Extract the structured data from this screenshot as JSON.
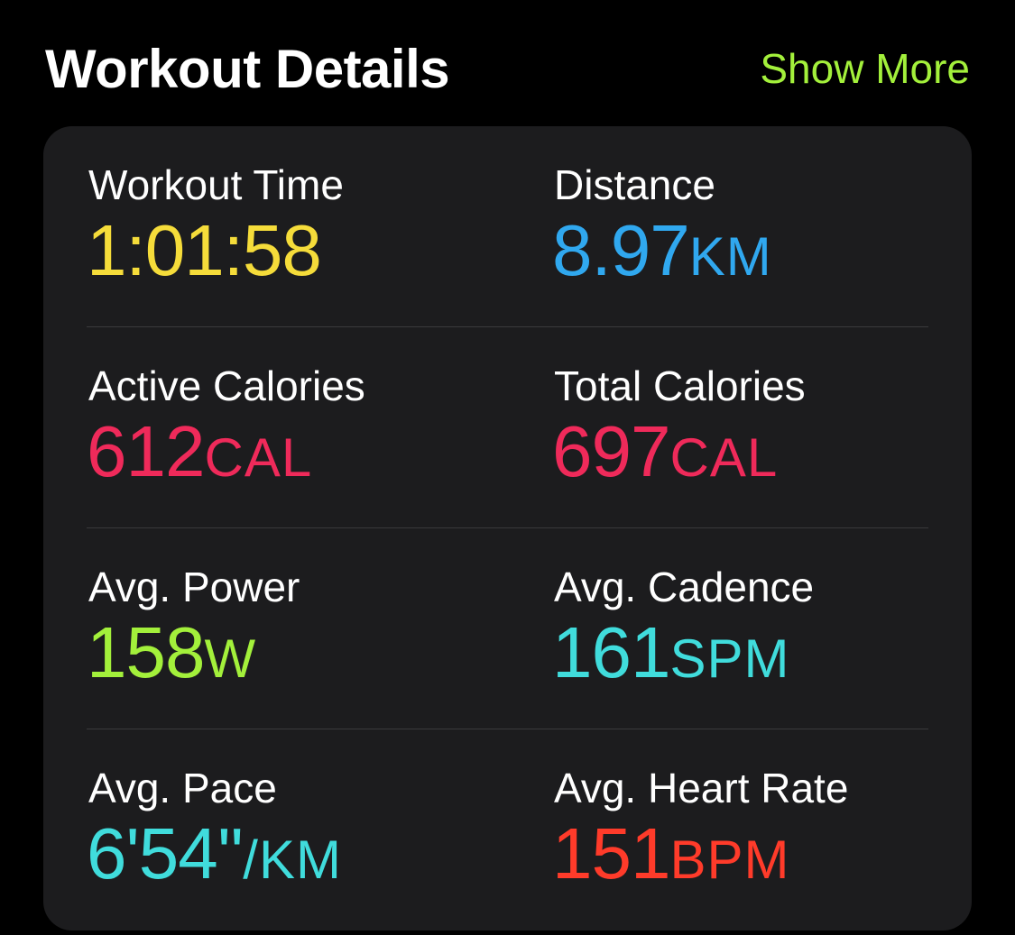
{
  "header": {
    "title": "Workout Details",
    "show_more_label": "Show More"
  },
  "colors": {
    "background": "#000000",
    "card": "#1c1c1e",
    "divider": "#3a3a3c",
    "accent_green": "#a3f03b",
    "time_yellow": "#f5dc3a",
    "distance_blue": "#30a8ef",
    "calories_red": "#ef2a5a",
    "power_green": "#a3f03b",
    "cyan": "#40dcdc",
    "heart_red": "#ff3b2a"
  },
  "metrics": [
    {
      "label": "Workout Time",
      "value": "1:01:58",
      "unit": "",
      "color": "#f5dc3a"
    },
    {
      "label": "Distance",
      "value": "8.97",
      "unit": "KM",
      "color": "#30a8ef"
    },
    {
      "label": "Active Calories",
      "value": "612",
      "unit": "CAL",
      "color": "#ef2a5a"
    },
    {
      "label": "Total Calories",
      "value": "697",
      "unit": "CAL",
      "color": "#ef2a5a"
    },
    {
      "label": "Avg. Power",
      "value": "158",
      "unit": "W",
      "color": "#a3f03b"
    },
    {
      "label": "Avg. Cadence",
      "value": "161",
      "unit": "SPM",
      "color": "#40dcdc"
    },
    {
      "label": "Avg. Pace",
      "value": "6'54''",
      "unit": "/KM",
      "color": "#40dcdc"
    },
    {
      "label": "Avg. Heart Rate",
      "value": "151",
      "unit": "BPM",
      "color": "#ff3b2a"
    }
  ]
}
